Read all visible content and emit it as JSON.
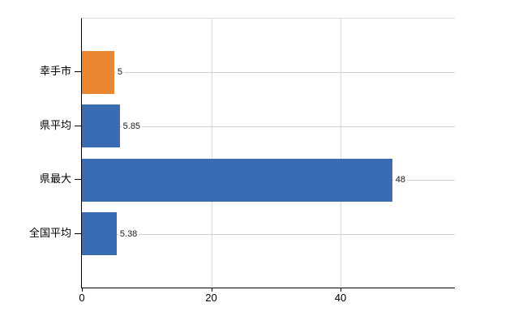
{
  "chart_data": {
    "type": "bar",
    "orientation": "horizontal",
    "title": "",
    "xlabel": "",
    "ylabel": "",
    "categories": [
      "幸手市",
      "県平均",
      "県最大",
      "全国平均"
    ],
    "values": [
      5,
      5.85,
      48,
      5.38
    ],
    "value_labels": [
      "5",
      "5.85",
      "48",
      "5.38"
    ],
    "bar_colors": [
      "#ea862f",
      "#3a6cb4",
      "#3a6cb4",
      "#3a6cb4"
    ],
    "x_ticks": [
      0,
      20,
      40
    ],
    "x_tick_labels": [
      "0",
      "20",
      "40"
    ],
    "xlim": [
      0,
      57.7
    ],
    "grid": true,
    "legend": "none",
    "colors": {
      "axis": "#000000",
      "row_gridline": "#ccd6cc",
      "column_gridline": "#dcdcdc",
      "background": "#ffffff",
      "orange_series": "#ea862f",
      "blue_series": "#3a6cb4"
    }
  }
}
